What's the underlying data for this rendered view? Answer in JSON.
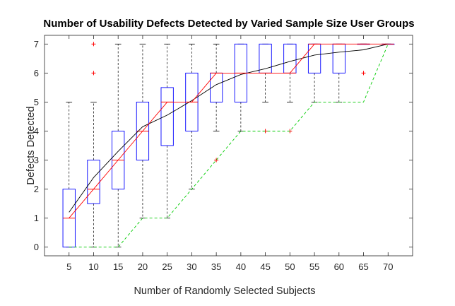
{
  "chart_data": {
    "type": "box",
    "title": "Number of Usability Defects Detected by Varied Sample Size User Groups",
    "xlabel": "Number of Randomly Selected Subjects",
    "ylabel": "Defects Detected",
    "categories": [
      "5",
      "10",
      "15",
      "20",
      "25",
      "30",
      "35",
      "40",
      "45",
      "50",
      "55",
      "60",
      "65",
      "70"
    ],
    "ylim": [
      -0.3,
      7.3
    ],
    "yticks": [
      "0",
      "1",
      "2",
      "3",
      "4",
      "5",
      "6",
      "7"
    ],
    "grid": false,
    "boxes": [
      {
        "x": 5,
        "whisker_low": 0,
        "q1": 0,
        "median": 1,
        "q3": 2,
        "whisker_high": 5,
        "outliers": []
      },
      {
        "x": 10,
        "whisker_low": 0,
        "q1": 1.5,
        "median": 2,
        "q3": 3,
        "whisker_high": 5,
        "outliers": [
          6,
          7
        ]
      },
      {
        "x": 15,
        "whisker_low": 0,
        "q1": 2,
        "median": 3,
        "q3": 4,
        "whisker_high": 7,
        "outliers": []
      },
      {
        "x": 20,
        "whisker_low": 1,
        "q1": 3,
        "median": 4,
        "q3": 5,
        "whisker_high": 7,
        "outliers": []
      },
      {
        "x": 25,
        "whisker_low": 1,
        "q1": 3.5,
        "median": 5,
        "q3": 5.5,
        "whisker_high": 7,
        "outliers": []
      },
      {
        "x": 30,
        "whisker_low": 2,
        "q1": 4,
        "median": 5,
        "q3": 6,
        "whisker_high": 7,
        "outliers": []
      },
      {
        "x": 35,
        "whisker_low": 4,
        "q1": 5,
        "median": 6,
        "q3": 6,
        "whisker_high": 7,
        "outliers": [
          3
        ]
      },
      {
        "x": 40,
        "whisker_low": 4,
        "q1": 5,
        "median": 6,
        "q3": 7,
        "whisker_high": 7,
        "outliers": []
      },
      {
        "x": 45,
        "whisker_low": 5,
        "q1": 6,
        "median": 6,
        "q3": 7,
        "whisker_high": 7,
        "outliers": [
          4
        ]
      },
      {
        "x": 50,
        "whisker_low": 5,
        "q1": 6,
        "median": 6,
        "q3": 7,
        "whisker_high": 7,
        "outliers": [
          4
        ]
      },
      {
        "x": 55,
        "whisker_low": 5,
        "q1": 6,
        "median": 7,
        "q3": 7,
        "whisker_high": 7,
        "outliers": []
      },
      {
        "x": 60,
        "whisker_low": 5,
        "q1": 6,
        "median": 7,
        "q3": 7,
        "whisker_high": 7,
        "outliers": []
      },
      {
        "x": 65,
        "whisker_low": 7,
        "q1": 7,
        "median": 7,
        "q3": 7,
        "whisker_high": 7,
        "outliers": [
          6
        ]
      },
      {
        "x": 70,
        "whisker_low": 7,
        "q1": 7,
        "median": 7,
        "q3": 7,
        "whisker_high": 7,
        "outliers": []
      }
    ],
    "series": [
      {
        "style": "solid",
        "color": "#000000",
        "x": [
          5,
          10,
          15,
          20,
          25,
          30,
          35,
          40,
          45,
          50,
          55,
          60,
          65,
          70
        ],
        "values": [
          1.2,
          2.4,
          3.3,
          4.15,
          4.55,
          5.05,
          5.6,
          5.95,
          6.15,
          6.4,
          6.62,
          6.72,
          6.8,
          7.0
        ]
      },
      {
        "style": "solid",
        "color": "#ff0000",
        "x": [
          5,
          10,
          15,
          20,
          25,
          30,
          35,
          40,
          45,
          50,
          55,
          60,
          65,
          70
        ],
        "values": [
          1,
          2,
          3,
          4,
          5,
          5,
          6,
          6,
          6,
          6,
          7,
          7,
          7,
          7
        ]
      },
      {
        "style": "dashed",
        "color": "#00cc00",
        "x": [
          5,
          10,
          15,
          20,
          25,
          30,
          35,
          40,
          45,
          50,
          55,
          60,
          65,
          70
        ],
        "values": [
          0,
          0,
          0,
          1,
          1,
          2,
          3,
          4,
          4,
          4,
          5,
          5,
          5,
          7
        ]
      }
    ],
    "colors": {
      "box": "#0000ff",
      "median": "#ff0000",
      "whisker": "#000000",
      "outlier": "#ff0000",
      "axis": "#262626"
    }
  }
}
